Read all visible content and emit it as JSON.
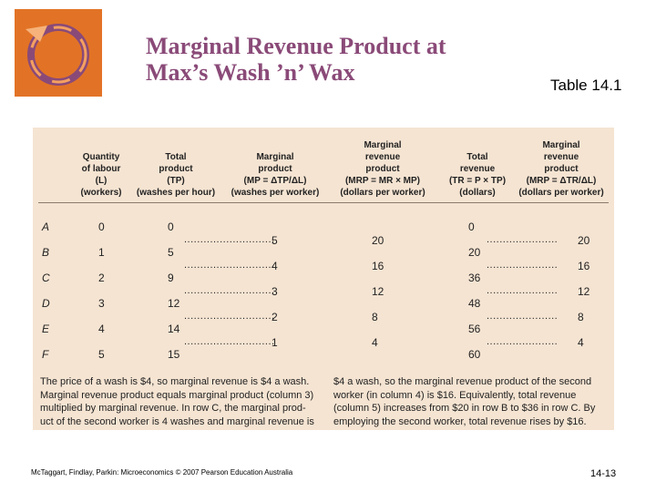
{
  "title": {
    "line1": "Marginal Revenue Product at",
    "line2": "Max’s Wash ’n’ Wax"
  },
  "table_label": "Table 14.1",
  "headers": [
    {
      "lines": [
        "Quantity",
        "of labour",
        "(L)",
        "(workers)"
      ]
    },
    {
      "lines": [
        "Total",
        "product",
        "(TP)",
        "(washes per hour)"
      ]
    },
    {
      "lines": [
        "Marginal",
        "product",
        "(MP = ΔTP/ΔL)",
        "(washes per worker)"
      ]
    },
    {
      "lines": [
        "Marginal",
        "revenue",
        "product",
        "(MRP = MR × MP)",
        "(dollars per worker)"
      ]
    },
    {
      "lines": [
        "Total",
        "revenue",
        "(TR = P × TP)",
        "(dollars)"
      ]
    },
    {
      "lines": [
        "Marginal",
        "revenue",
        "product",
        "(MRP = ΔTR/ΔL)",
        "(dollars per worker)"
      ]
    }
  ],
  "rows": [
    {
      "label": "A",
      "labour": "0",
      "tp": "0",
      "tr": "0"
    },
    {
      "label": "B",
      "labour": "1",
      "tp": "5",
      "tr": "20"
    },
    {
      "label": "C",
      "labour": "2",
      "tp": "9",
      "tr": "36"
    },
    {
      "label": "D",
      "labour": "3",
      "tp": "12",
      "tr": "48"
    },
    {
      "label": "E",
      "labour": "4",
      "tp": "14",
      "tr": "56"
    },
    {
      "label": "F",
      "labour": "5",
      "tp": "15",
      "tr": "60"
    }
  ],
  "marginal": [
    {
      "mp_dots": "............................",
      "mp": "5",
      "mrp": "20",
      "mrp2_dots": "......................",
      "mrp2": "20"
    },
    {
      "mp_dots": "............................",
      "mp": "4",
      "mrp": "16",
      "mrp2_dots": "......................",
      "mrp2": "16"
    },
    {
      "mp_dots": "............................",
      "mp": "3",
      "mrp": "12",
      "mrp2_dots": "......................",
      "mrp2": "12"
    },
    {
      "mp_dots": "............................",
      "mp": "2",
      "mrp": "8",
      "mrp2_dots": "......................",
      "mrp2": "8"
    },
    {
      "mp_dots": "............................",
      "mp": "1",
      "mrp": "4",
      "mrp2_dots": "......................",
      "mrp2": "4"
    }
  ],
  "note_left": [
    "The price of a wash is $4, so marginal revenue is $4 a wash.",
    "Marginal revenue product equals marginal product (column 3)",
    "multiplied by marginal revenue. In row C, the marginal prod-",
    "uct of the second worker is 4 washes and marginal revenue is"
  ],
  "note_right": [
    "$4 a wash, so the marginal revenue product of the second",
    "worker (in column 4) is $16. Equivalently, total revenue",
    "(column 5) increases from $20 in row B to $36 in row C. By",
    "employing the second worker, total revenue rises by $16."
  ],
  "footer": "McTaggart, Findlay, Parkin: Microeconomics © 2007 Pearson Education Australia",
  "page_number": "14-13",
  "colors": {
    "title": "#8a4a78",
    "panel": "#f5e4d2",
    "logo_orange": "#e8782a",
    "logo_purple": "#8a4a78"
  }
}
